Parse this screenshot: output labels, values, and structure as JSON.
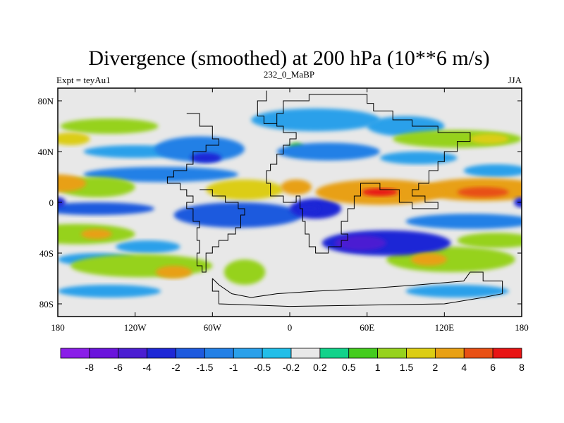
{
  "chart_data": {
    "type": "heatmap",
    "title": "Divergence (smoothed) at 200 hPa (10**6 m/s)",
    "left_label": "Expt = teyAu1",
    "center_label": "232_0_MaBP",
    "right_label": "JJA",
    "x_ticks": [
      "180",
      "120W",
      "60W",
      "0",
      "60E",
      "120E",
      "180"
    ],
    "x_tick_values": [
      -180,
      -120,
      -60,
      0,
      60,
      120,
      180
    ],
    "y_ticks": [
      "80N",
      "40N",
      "0",
      "40S",
      "80S"
    ],
    "y_tick_values": [
      80,
      40,
      0,
      -40,
      -80
    ],
    "xlim": [
      -180,
      180
    ],
    "ylim": [
      -90,
      90
    ],
    "colorbar": {
      "labels": [
        "-8",
        "-6",
        "-4",
        "-2",
        "-1.5",
        "-1",
        "-0.5",
        "-0.2",
        "0.2",
        "0.5",
        "1",
        "1.5",
        "2",
        "4",
        "6",
        "8"
      ],
      "colors": [
        "#8a1ee8",
        "#6a14dc",
        "#4b1ed2",
        "#1e28d6",
        "#1e5ade",
        "#2380e6",
        "#2aa0ea",
        "#22bee8",
        "#e8e8e8",
        "#12d28a",
        "#44cc1e",
        "#96d21e",
        "#dccd14",
        "#e8a014",
        "#e85014",
        "#e81414"
      ]
    },
    "blobs": [
      {
        "lon": -180,
        "lat": 15,
        "rx": 22,
        "ry": 7,
        "value": 2.5
      },
      {
        "lon": 150,
        "lat": 10,
        "rx": 50,
        "ry": 9,
        "value": 3
      },
      {
        "lon": 150,
        "lat": 8,
        "rx": 20,
        "ry": 4,
        "value": 5
      },
      {
        "lon": 70,
        "lat": 8,
        "rx": 50,
        "ry": 10,
        "value": 3
      },
      {
        "lon": 70,
        "lat": 8,
        "rx": 14,
        "ry": 3,
        "value": 6
      },
      {
        "lon": -35,
        "lat": 10,
        "rx": 30,
        "ry": 8,
        "value": 1.5
      },
      {
        "lon": 5,
        "lat": 12,
        "rx": 12,
        "ry": 6,
        "value": 2
      },
      {
        "lon": -150,
        "lat": 12,
        "rx": 30,
        "ry": 8,
        "value": 1.2
      },
      {
        "lon": -165,
        "lat": -25,
        "rx": 45,
        "ry": 8,
        "value": 1.2
      },
      {
        "lon": -150,
        "lat": -25,
        "rx": 12,
        "ry": 4,
        "value": 2.5
      },
      {
        "lon": -115,
        "lat": -50,
        "rx": 55,
        "ry": 9,
        "value": 1
      },
      {
        "lon": -90,
        "lat": -55,
        "rx": 14,
        "ry": 5,
        "value": 2
      },
      {
        "lon": -35,
        "lat": -55,
        "rx": 16,
        "ry": 10,
        "value": 1.2
      },
      {
        "lon": 125,
        "lat": -45,
        "rx": 50,
        "ry": 10,
        "value": 1.2
      },
      {
        "lon": 108,
        "lat": -45,
        "rx": 14,
        "ry": 5,
        "value": 2.5
      },
      {
        "lon": 160,
        "lat": -30,
        "rx": 30,
        "ry": 6,
        "value": 1
      },
      {
        "lon": -140,
        "lat": 60,
        "rx": 38,
        "ry": 6,
        "value": 1
      },
      {
        "lon": -170,
        "lat": 50,
        "rx": 15,
        "ry": 5,
        "value": 1.5
      },
      {
        "lon": 130,
        "lat": 50,
        "rx": 50,
        "ry": 7,
        "value": 1
      },
      {
        "lon": 155,
        "lat": 50,
        "rx": 15,
        "ry": 4,
        "value": 1.5
      },
      {
        "lon": 5,
        "lat": 42,
        "rx": 6,
        "ry": 5,
        "value": 0.8
      },
      {
        "lon": -100,
        "lat": 22,
        "rx": 60,
        "ry": 6,
        "value": -1
      },
      {
        "lon": -120,
        "lat": 40,
        "rx": 40,
        "ry": 5,
        "value": -0.8
      },
      {
        "lon": -70,
        "lat": 42,
        "rx": 35,
        "ry": 10,
        "value": -1.2
      },
      {
        "lon": -65,
        "lat": 35,
        "rx": 12,
        "ry": 4,
        "value": -2.5
      },
      {
        "lon": 30,
        "lat": 40,
        "rx": 40,
        "ry": 7,
        "value": -1.2
      },
      {
        "lon": 20,
        "lat": 65,
        "rx": 50,
        "ry": 9,
        "value": -0.8
      },
      {
        "lon": 90,
        "lat": 60,
        "rx": 30,
        "ry": 8,
        "value": -0.6
      },
      {
        "lon": 100,
        "lat": 35,
        "rx": 30,
        "ry": 5,
        "value": -0.6
      },
      {
        "lon": 160,
        "lat": 25,
        "rx": 25,
        "ry": 5,
        "value": -0.5
      },
      {
        "lon": -150,
        "lat": -5,
        "rx": 45,
        "ry": 5,
        "value": -1.5
      },
      {
        "lon": -180,
        "lat": 0,
        "rx": 6,
        "ry": 4,
        "value": -3
      },
      {
        "lon": 180,
        "lat": 0,
        "rx": 6,
        "ry": 4,
        "value": -3
      },
      {
        "lon": -40,
        "lat": -10,
        "rx": 50,
        "ry": 10,
        "value": -1.5
      },
      {
        "lon": 20,
        "lat": -5,
        "rx": 20,
        "ry": 8,
        "value": -2
      },
      {
        "lon": 15,
        "lat": -5,
        "rx": 8,
        "ry": 4,
        "value": -3
      },
      {
        "lon": 75,
        "lat": -32,
        "rx": 50,
        "ry": 10,
        "value": -2
      },
      {
        "lon": 55,
        "lat": -32,
        "rx": 20,
        "ry": 6,
        "value": -4
      },
      {
        "lon": 140,
        "lat": -15,
        "rx": 50,
        "ry": 6,
        "value": -1
      },
      {
        "lon": -150,
        "lat": -45,
        "rx": 30,
        "ry": 5,
        "value": -0.5
      },
      {
        "lon": -110,
        "lat": -35,
        "rx": 25,
        "ry": 5,
        "value": -0.6
      },
      {
        "lon": -140,
        "lat": -70,
        "rx": 40,
        "ry": 5,
        "value": -0.6
      },
      {
        "lon": 130,
        "lat": -70,
        "rx": 40,
        "ry": 5,
        "value": -0.6
      }
    ],
    "coast": [
      [
        -18,
        88
      ],
      [
        -18,
        80
      ],
      [
        -25,
        80
      ],
      [
        -25,
        68
      ],
      [
        -20,
        68
      ],
      [
        -20,
        62
      ],
      [
        -15,
        62
      ],
      [
        -10,
        62
      ],
      [
        -10,
        70
      ],
      [
        -5,
        70
      ],
      [
        -5,
        80
      ],
      [
        15,
        80
      ],
      [
        15,
        85
      ],
      [
        60,
        85
      ],
      [
        60,
        78
      ],
      [
        65,
        78
      ],
      [
        65,
        72
      ],
      [
        80,
        72
      ],
      [
        80,
        65
      ],
      [
        95,
        65
      ],
      [
        95,
        60
      ],
      [
        115,
        60
      ],
      [
        115,
        55
      ],
      [
        140,
        55
      ],
      [
        140,
        48
      ],
      [
        130,
        48
      ],
      [
        130,
        40
      ],
      [
        120,
        40
      ],
      [
        120,
        32
      ],
      [
        115,
        32
      ],
      [
        115,
        25
      ],
      [
        108,
        25
      ],
      [
        108,
        15
      ],
      [
        100,
        15
      ],
      [
        100,
        10
      ],
      [
        95,
        10
      ],
      [
        95,
        5
      ],
      [
        105,
        5
      ],
      [
        105,
        0
      ],
      [
        115,
        0
      ],
      [
        115,
        -5
      ],
      [
        95,
        -5
      ],
      [
        95,
        0
      ],
      [
        85,
        0
      ],
      [
        85,
        10
      ],
      [
        70,
        10
      ],
      [
        70,
        15
      ],
      [
        55,
        15
      ],
      [
        55,
        5
      ],
      [
        50,
        5
      ],
      [
        50,
        -5
      ],
      [
        45,
        -5
      ],
      [
        45,
        -15
      ],
      [
        40,
        -15
      ],
      [
        40,
        -25
      ],
      [
        45,
        -25
      ],
      [
        45,
        -30
      ],
      [
        40,
        -30
      ],
      [
        40,
        -35
      ],
      [
        30,
        -35
      ],
      [
        30,
        -40
      ],
      [
        20,
        -40
      ],
      [
        20,
        -35
      ],
      [
        15,
        -35
      ],
      [
        15,
        -25
      ],
      [
        12,
        -25
      ],
      [
        12,
        -15
      ],
      [
        10,
        -15
      ],
      [
        10,
        -5
      ],
      [
        8,
        -5
      ],
      [
        8,
        5
      ],
      [
        5,
        5
      ],
      [
        5,
        0
      ],
      [
        -5,
        0
      ],
      [
        -5,
        5
      ],
      [
        -15,
        5
      ],
      [
        -15,
        15
      ],
      [
        -18,
        15
      ],
      [
        -18,
        25
      ],
      [
        -15,
        25
      ],
      [
        -15,
        30
      ],
      [
        -10,
        30
      ],
      [
        -10,
        38
      ],
      [
        -5,
        38
      ],
      [
        -5,
        45
      ],
      [
        0,
        45
      ],
      [
        0,
        50
      ],
      [
        5,
        50
      ],
      [
        5,
        55
      ],
      [
        -5,
        55
      ],
      [
        -5,
        60
      ],
      [
        -10,
        60
      ],
      [
        -10,
        62
      ],
      [
        -15,
        62
      ]
    ],
    "coast2": [
      [
        -80,
        70
      ],
      [
        -70,
        70
      ],
      [
        -70,
        60
      ],
      [
        -60,
        60
      ],
      [
        -60,
        50
      ],
      [
        -55,
        50
      ],
      [
        -55,
        45
      ],
      [
        -65,
        45
      ],
      [
        -65,
        40
      ],
      [
        -75,
        40
      ],
      [
        -75,
        30
      ],
      [
        -80,
        30
      ],
      [
        -80,
        25
      ],
      [
        -90,
        25
      ],
      [
        -90,
        20
      ],
      [
        -95,
        20
      ],
      [
        -95,
        15
      ],
      [
        -85,
        15
      ],
      [
        -85,
        10
      ],
      [
        -80,
        10
      ],
      [
        -80,
        5
      ],
      [
        -75,
        5
      ],
      [
        -75,
        0
      ],
      [
        -80,
        0
      ],
      [
        -80,
        -5
      ],
      [
        -75,
        -5
      ],
      [
        -75,
        -15
      ],
      [
        -70,
        -15
      ],
      [
        -70,
        -20
      ],
      [
        -72,
        -20
      ],
      [
        -72,
        -30
      ],
      [
        -70,
        -30
      ],
      [
        -70,
        -40
      ],
      [
        -72,
        -40
      ],
      [
        -72,
        -50
      ],
      [
        -68,
        -50
      ],
      [
        -68,
        -55
      ],
      [
        -65,
        -55
      ],
      [
        -65,
        -40
      ],
      [
        -60,
        -40
      ],
      [
        -60,
        -35
      ],
      [
        -55,
        -35
      ],
      [
        -55,
        -30
      ],
      [
        -48,
        -30
      ],
      [
        -48,
        -25
      ],
      [
        -42,
        -25
      ],
      [
        -42,
        -20
      ],
      [
        -38,
        -20
      ],
      [
        -38,
        -10
      ],
      [
        -35,
        -10
      ],
      [
        -35,
        -5
      ],
      [
        -40,
        -5
      ],
      [
        -40,
        0
      ],
      [
        -50,
        0
      ],
      [
        -50,
        5
      ],
      [
        -60,
        5
      ],
      [
        -60,
        10
      ],
      [
        -70,
        10
      ]
    ],
    "coast3": [
      [
        -60,
        -60
      ],
      [
        -60,
        -70
      ],
      [
        -55,
        -70
      ],
      [
        -55,
        -80
      ],
      [
        0,
        -82
      ],
      [
        120,
        -80
      ],
      [
        150,
        -75
      ],
      [
        165,
        -72
      ],
      [
        165,
        -62
      ],
      [
        150,
        -62
      ],
      [
        150,
        -55
      ],
      [
        140,
        -55
      ],
      [
        135,
        -62
      ],
      [
        100,
        -65
      ],
      [
        60,
        -68
      ],
      [
        20,
        -70
      ],
      [
        -10,
        -72
      ],
      [
        -30,
        -75
      ],
      [
        -45,
        -72
      ],
      [
        -55,
        -65
      ],
      [
        -60,
        -60
      ]
    ]
  }
}
